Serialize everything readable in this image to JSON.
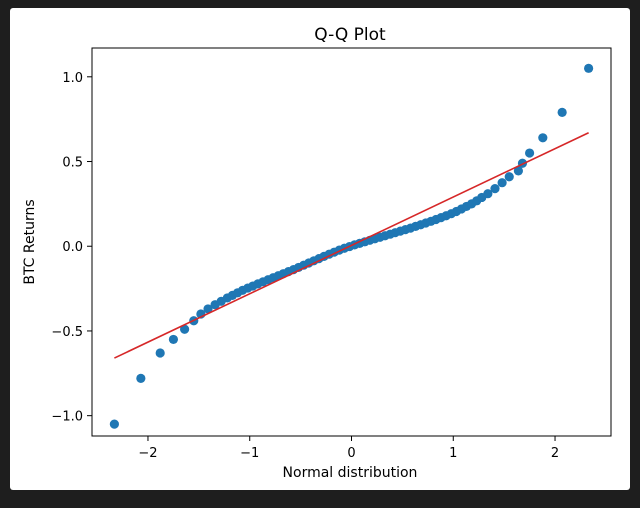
{
  "chart_data": {
    "type": "scatter",
    "title": "Q-Q Plot",
    "xlabel": "Normal distribution",
    "ylabel": "BTC Returns",
    "xlim": [
      -2.55,
      2.55
    ],
    "ylim": [
      -1.12,
      1.17
    ],
    "xticks": [
      {
        "value": -2,
        "label": "−2"
      },
      {
        "value": -1,
        "label": "−1"
      },
      {
        "value": 0,
        "label": "0"
      },
      {
        "value": 1,
        "label": "1"
      },
      {
        "value": 2,
        "label": "2"
      }
    ],
    "yticks": [
      {
        "value": -1.0,
        "label": "−1.0"
      },
      {
        "value": -0.5,
        "label": "−0.5"
      },
      {
        "value": 0.0,
        "label": "0.0"
      },
      {
        "value": 0.5,
        "label": "0.5"
      },
      {
        "value": 1.0,
        "label": "1.0"
      }
    ],
    "grid": false,
    "fit_line": {
      "x": [
        -2.33,
        2.33
      ],
      "y": [
        -0.66,
        0.67
      ]
    },
    "points": [
      {
        "x": -2.33,
        "y": -1.05
      },
      {
        "x": -2.07,
        "y": -0.78
      },
      {
        "x": -1.88,
        "y": -0.63
      },
      {
        "x": -1.75,
        "y": -0.55
      },
      {
        "x": -1.64,
        "y": -0.49
      },
      {
        "x": -1.55,
        "y": -0.44
      },
      {
        "x": -1.48,
        "y": -0.4
      },
      {
        "x": -1.41,
        "y": -0.37
      },
      {
        "x": -1.34,
        "y": -0.345
      },
      {
        "x": -1.28,
        "y": -0.325
      },
      {
        "x": -1.22,
        "y": -0.305
      },
      {
        "x": -1.17,
        "y": -0.29
      },
      {
        "x": -1.12,
        "y": -0.275
      },
      {
        "x": -1.07,
        "y": -0.26
      },
      {
        "x": -1.02,
        "y": -0.247
      },
      {
        "x": -0.97,
        "y": -0.235
      },
      {
        "x": -0.92,
        "y": -0.222
      },
      {
        "x": -0.87,
        "y": -0.21
      },
      {
        "x": -0.82,
        "y": -0.198
      },
      {
        "x": -0.77,
        "y": -0.186
      },
      {
        "x": -0.72,
        "y": -0.174
      },
      {
        "x": -0.67,
        "y": -0.162
      },
      {
        "x": -0.62,
        "y": -0.15
      },
      {
        "x": -0.57,
        "y": -0.138
      },
      {
        "x": -0.52,
        "y": -0.125
      },
      {
        "x": -0.47,
        "y": -0.112
      },
      {
        "x": -0.42,
        "y": -0.099
      },
      {
        "x": -0.37,
        "y": -0.086
      },
      {
        "x": -0.32,
        "y": -0.073
      },
      {
        "x": -0.27,
        "y": -0.06
      },
      {
        "x": -0.22,
        "y": -0.047
      },
      {
        "x": -0.17,
        "y": -0.035
      },
      {
        "x": -0.12,
        "y": -0.023
      },
      {
        "x": -0.07,
        "y": -0.012
      },
      {
        "x": -0.02,
        "y": -0.002
      },
      {
        "x": 0.03,
        "y": 0.008
      },
      {
        "x": 0.08,
        "y": 0.017
      },
      {
        "x": 0.13,
        "y": 0.026
      },
      {
        "x": 0.18,
        "y": 0.035
      },
      {
        "x": 0.23,
        "y": 0.044
      },
      {
        "x": 0.28,
        "y": 0.053
      },
      {
        "x": 0.33,
        "y": 0.062
      },
      {
        "x": 0.38,
        "y": 0.071
      },
      {
        "x": 0.43,
        "y": 0.08
      },
      {
        "x": 0.48,
        "y": 0.089
      },
      {
        "x": 0.53,
        "y": 0.098
      },
      {
        "x": 0.58,
        "y": 0.107
      },
      {
        "x": 0.63,
        "y": 0.117
      },
      {
        "x": 0.68,
        "y": 0.127
      },
      {
        "x": 0.73,
        "y": 0.137
      },
      {
        "x": 0.78,
        "y": 0.147
      },
      {
        "x": 0.83,
        "y": 0.158
      },
      {
        "x": 0.88,
        "y": 0.169
      },
      {
        "x": 0.93,
        "y": 0.18
      },
      {
        "x": 0.98,
        "y": 0.192
      },
      {
        "x": 1.03,
        "y": 0.205
      },
      {
        "x": 1.08,
        "y": 0.22
      },
      {
        "x": 1.13,
        "y": 0.235
      },
      {
        "x": 1.18,
        "y": 0.25
      },
      {
        "x": 1.23,
        "y": 0.268
      },
      {
        "x": 1.28,
        "y": 0.288
      },
      {
        "x": 1.34,
        "y": 0.31
      },
      {
        "x": 1.41,
        "y": 0.34
      },
      {
        "x": 1.48,
        "y": 0.375
      },
      {
        "x": 1.55,
        "y": 0.41
      },
      {
        "x": 1.64,
        "y": 0.445
      },
      {
        "x": 1.68,
        "y": 0.49
      },
      {
        "x": 1.75,
        "y": 0.55
      },
      {
        "x": 1.88,
        "y": 0.64
      },
      {
        "x": 2.07,
        "y": 0.79
      },
      {
        "x": 2.33,
        "y": 1.05
      }
    ],
    "point_color": "#1f77b4",
    "line_color": "#d62728"
  }
}
